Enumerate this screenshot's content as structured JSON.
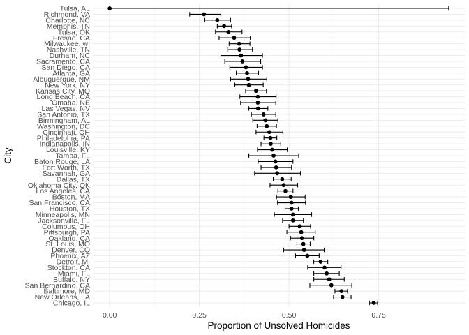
{
  "chart_data": {
    "type": "scatter",
    "xlabel": "Proportion of Unsolved Homicides",
    "ylabel": "City",
    "xlim": [
      -0.047,
      0.99
    ],
    "x_ticks": [
      0.0,
      0.25,
      0.5,
      0.75
    ],
    "x_tick_labels": [
      "0.00",
      "0.25",
      "0.50",
      "0.75"
    ],
    "grid": true,
    "legend": "none",
    "colors": {
      "point": "#000000",
      "errorbar": "#000000",
      "grid": "#ebebeb",
      "background": "#ffffff"
    },
    "points": [
      {
        "city": "Tulsa, AL",
        "estimate": 0.0,
        "lower": 0.0,
        "upper": 0.945
      },
      {
        "city": "Richmond, VA",
        "estimate": 0.263,
        "lower": 0.223,
        "upper": 0.31
      },
      {
        "city": "Charlotte, NC",
        "estimate": 0.3,
        "lower": 0.265,
        "upper": 0.337
      },
      {
        "city": "Memphis, TN",
        "estimate": 0.319,
        "lower": 0.3,
        "upper": 0.34
      },
      {
        "city": "Tulsa, OK",
        "estimate": 0.331,
        "lower": 0.295,
        "upper": 0.369
      },
      {
        "city": "Fresno, CA",
        "estimate": 0.347,
        "lower": 0.305,
        "upper": 0.392
      },
      {
        "city": "Milwaukee, wI",
        "estimate": 0.361,
        "lower": 0.333,
        "upper": 0.391
      },
      {
        "city": "Nashville, TN",
        "estimate": 0.362,
        "lower": 0.329,
        "upper": 0.398
      },
      {
        "city": "Durham, NC",
        "estimate": 0.366,
        "lower": 0.31,
        "upper": 0.426
      },
      {
        "city": "Sacramento, CA",
        "estimate": 0.37,
        "lower": 0.321,
        "upper": 0.421
      },
      {
        "city": "San Diego, CA",
        "estimate": 0.38,
        "lower": 0.335,
        "upper": 0.426
      },
      {
        "city": "Atlanta, GA",
        "estimate": 0.383,
        "lower": 0.353,
        "upper": 0.415
      },
      {
        "city": "Albuquerque, NM",
        "estimate": 0.386,
        "lower": 0.337,
        "upper": 0.438
      },
      {
        "city": "New York, NY",
        "estimate": 0.388,
        "lower": 0.349,
        "upper": 0.428
      },
      {
        "city": "Kansas City, MO",
        "estimate": 0.408,
        "lower": 0.379,
        "upper": 0.437
      },
      {
        "city": "Long Beach, CA",
        "estimate": 0.413,
        "lower": 0.363,
        "upper": 0.464
      },
      {
        "city": "Omaha, NE",
        "estimate": 0.413,
        "lower": 0.365,
        "upper": 0.463
      },
      {
        "city": "Las Vegas, NV",
        "estimate": 0.414,
        "lower": 0.388,
        "upper": 0.441
      },
      {
        "city": "San Antonio, TX",
        "estimate": 0.429,
        "lower": 0.395,
        "upper": 0.463
      },
      {
        "city": "Birmingham, AL",
        "estimate": 0.434,
        "lower": 0.399,
        "upper": 0.469
      },
      {
        "city": "Washington, DC",
        "estimate": 0.438,
        "lower": 0.411,
        "upper": 0.465
      },
      {
        "city": "Cincinnati, OH",
        "estimate": 0.445,
        "lower": 0.408,
        "upper": 0.483
      },
      {
        "city": "Philadelphia, PA",
        "estimate": 0.448,
        "lower": 0.43,
        "upper": 0.466
      },
      {
        "city": "Indianapolis, IN",
        "estimate": 0.449,
        "lower": 0.422,
        "upper": 0.477
      },
      {
        "city": "Louisville, KY",
        "estimate": 0.453,
        "lower": 0.412,
        "upper": 0.495
      },
      {
        "city": "Tampa, FL",
        "estimate": 0.457,
        "lower": 0.388,
        "upper": 0.527
      },
      {
        "city": "Baton Rouge, LA",
        "estimate": 0.462,
        "lower": 0.414,
        "upper": 0.511
      },
      {
        "city": "Fort Worth, TX",
        "estimate": 0.464,
        "lower": 0.422,
        "upper": 0.507
      },
      {
        "city": "Savannah, GA",
        "estimate": 0.467,
        "lower": 0.404,
        "upper": 0.532
      },
      {
        "city": "Dallas, TX",
        "estimate": 0.481,
        "lower": 0.456,
        "upper": 0.506
      },
      {
        "city": "Oklahoma City, OK",
        "estimate": 0.485,
        "lower": 0.447,
        "upper": 0.524
      },
      {
        "city": "Los Angeles, CA",
        "estimate": 0.49,
        "lower": 0.469,
        "upper": 0.511
      },
      {
        "city": "Boston, MA",
        "estimate": 0.505,
        "lower": 0.465,
        "upper": 0.545
      },
      {
        "city": "San Francisco, CA",
        "estimate": 0.507,
        "lower": 0.468,
        "upper": 0.546
      },
      {
        "city": "Houston, TX",
        "estimate": 0.507,
        "lower": 0.489,
        "upper": 0.526
      },
      {
        "city": "Minneapolis, MN",
        "estimate": 0.511,
        "lower": 0.459,
        "upper": 0.563
      },
      {
        "city": "Jacksonville, FL",
        "estimate": 0.511,
        "lower": 0.482,
        "upper": 0.54
      },
      {
        "city": "Columbus, OH",
        "estimate": 0.53,
        "lower": 0.5,
        "upper": 0.56
      },
      {
        "city": "Pittsburgh, PA",
        "estimate": 0.534,
        "lower": 0.494,
        "upper": 0.573
      },
      {
        "city": "Oakland, CA",
        "estimate": 0.536,
        "lower": 0.504,
        "upper": 0.569
      },
      {
        "city": "St. Louis, MO",
        "estimate": 0.54,
        "lower": 0.522,
        "upper": 0.559
      },
      {
        "city": "Denver, CO",
        "estimate": 0.542,
        "lower": 0.485,
        "upper": 0.598
      },
      {
        "city": "Phoenix, AZ",
        "estimate": 0.551,
        "lower": 0.518,
        "upper": 0.584
      },
      {
        "city": "Detroit, MI",
        "estimate": 0.588,
        "lower": 0.569,
        "upper": 0.608
      },
      {
        "city": "Stockton, CA",
        "estimate": 0.599,
        "lower": 0.552,
        "upper": 0.645
      },
      {
        "city": "Miami, FL",
        "estimate": 0.605,
        "lower": 0.569,
        "upper": 0.64
      },
      {
        "city": "Buffalo, NY",
        "estimate": 0.612,
        "lower": 0.569,
        "upper": 0.654
      },
      {
        "city": "San Bernardino, CA",
        "estimate": 0.618,
        "lower": 0.558,
        "upper": 0.675
      },
      {
        "city": "Baltimore, MD",
        "estimate": 0.646,
        "lower": 0.628,
        "upper": 0.663
      },
      {
        "city": "New Orleans, LA",
        "estimate": 0.649,
        "lower": 0.624,
        "upper": 0.673
      },
      {
        "city": "Chicago, IL",
        "estimate": 0.736,
        "lower": 0.724,
        "upper": 0.747
      }
    ]
  }
}
